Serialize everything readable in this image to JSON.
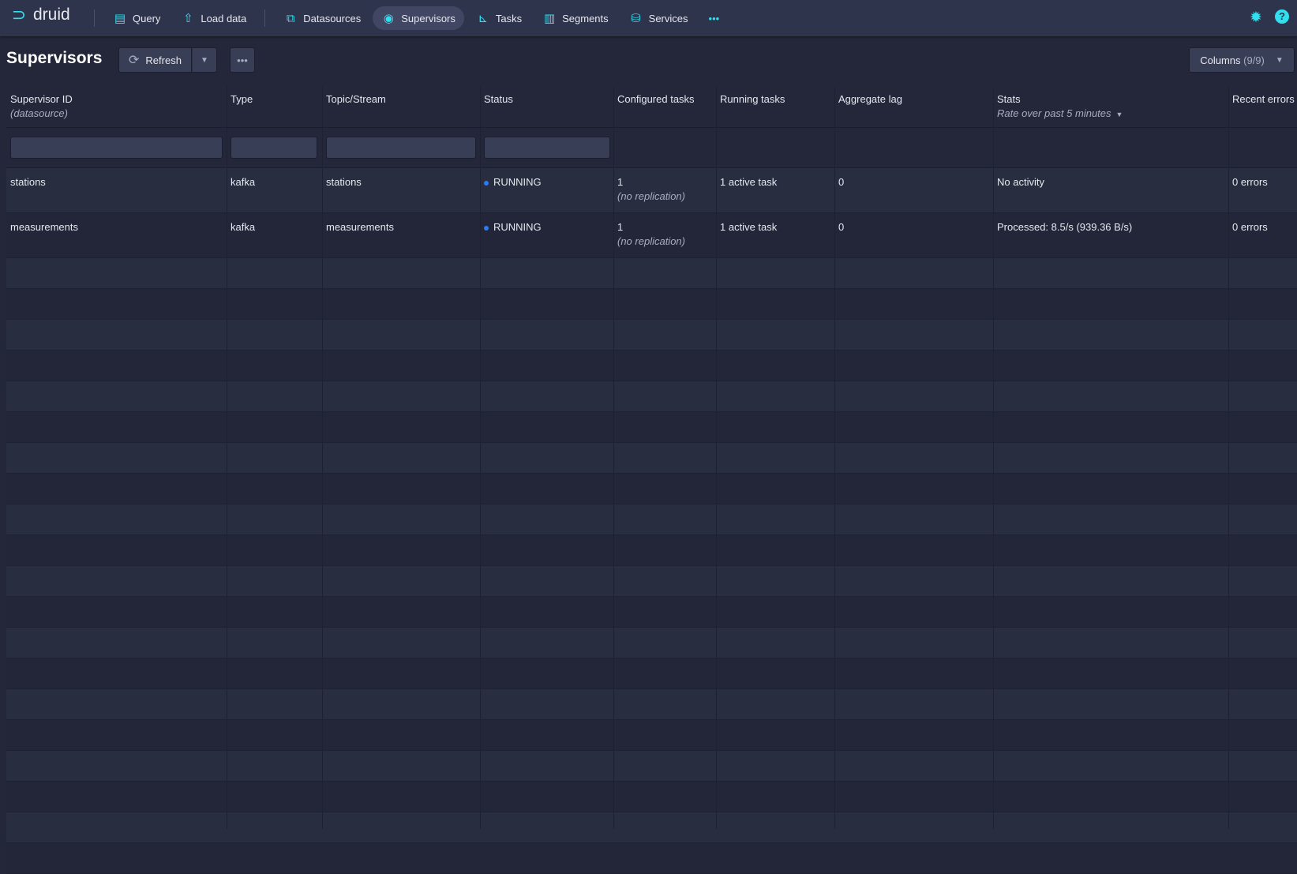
{
  "nav": {
    "logo": "druid",
    "items": [
      {
        "label": "Query",
        "icon": "query-icon"
      },
      {
        "label": "Load data",
        "icon": "upload-icon"
      },
      {
        "label": "Datasources",
        "icon": "datasources-icon"
      },
      {
        "label": "Supervisors",
        "icon": "eye-icon",
        "active": true
      },
      {
        "label": "Tasks",
        "icon": "tasks-icon"
      },
      {
        "label": "Segments",
        "icon": "segments-icon"
      },
      {
        "label": "Services",
        "icon": "database-icon"
      }
    ],
    "more": "•••"
  },
  "page": {
    "title": "Supervisors",
    "refresh": "Refresh",
    "more": "•••",
    "columns": "Columns",
    "columns_count": "(9/9)"
  },
  "table": {
    "headers": [
      {
        "label": "Supervisor ID",
        "sub": "(datasource)"
      },
      {
        "label": "Type"
      },
      {
        "label": "Topic/Stream"
      },
      {
        "label": "Status"
      },
      {
        "label": "Configured tasks"
      },
      {
        "label": "Running tasks"
      },
      {
        "label": "Aggregate lag"
      },
      {
        "label": "Stats",
        "sub": "Rate over past 5 minutes"
      },
      {
        "label": "Recent errors"
      }
    ],
    "rows": [
      {
        "id": "stations",
        "type": "kafka",
        "topic": "stations",
        "status": "RUNNING",
        "configured": "1",
        "configured_note": "(no replication)",
        "running": "1 active task",
        "lag": "0",
        "stats": "No activity",
        "errors": "0 errors"
      },
      {
        "id": "measurements",
        "type": "kafka",
        "topic": "measurements",
        "status": "RUNNING",
        "configured": "1",
        "configured_note": "(no replication)",
        "running": "1 active task",
        "lag": "0",
        "stats": "Processed: 8.5/s (939.36 B/s)",
        "errors": "0 errors"
      }
    ],
    "status_color": "#2b7bf5"
  }
}
